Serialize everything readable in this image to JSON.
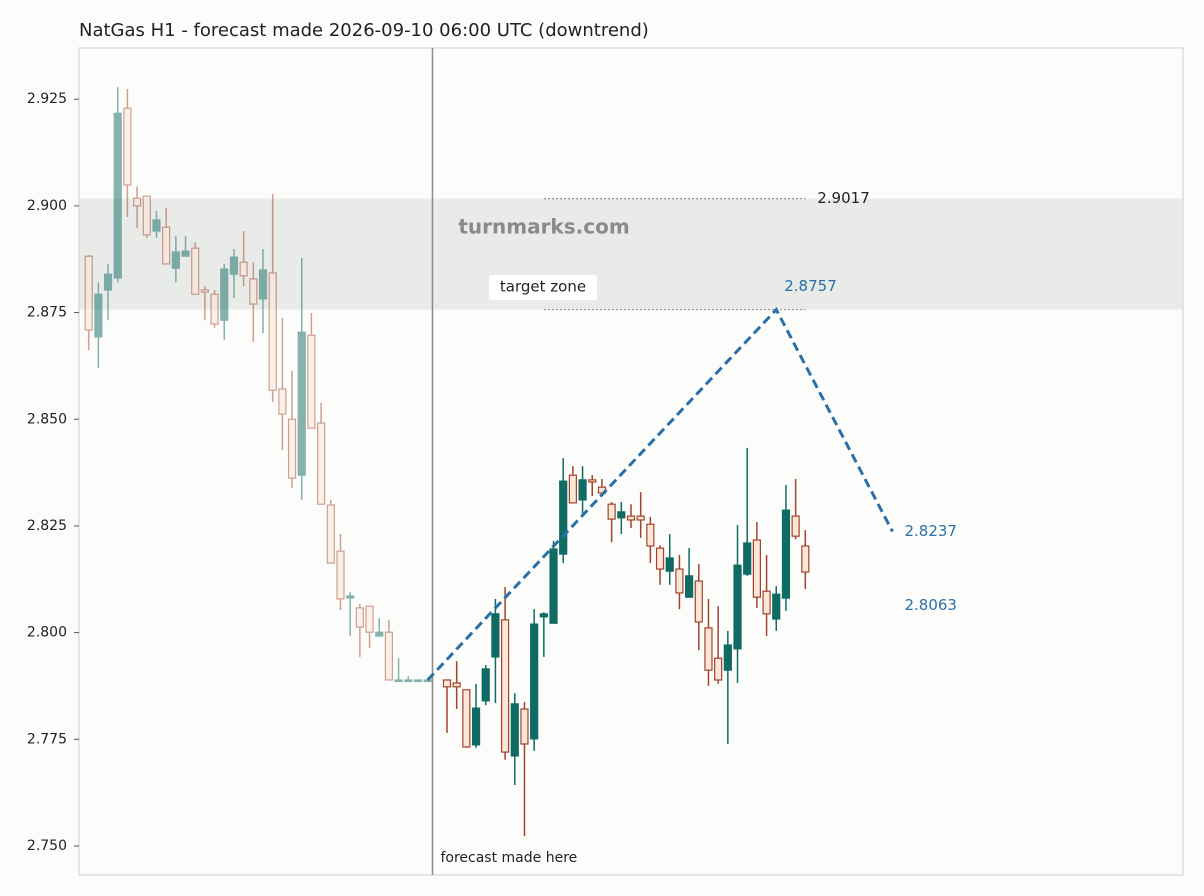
{
  "chart_data": {
    "type": "candlestick",
    "title": "NatGas H1 - forecast made 2026-09-10 06:00 UTC (downtrend)",
    "watermark": "turnmarks.com",
    "xlim": [
      -1,
      113
    ],
    "ylim": [
      2.7432,
      2.937
    ],
    "yticks": [
      {
        "value": 2.75,
        "label": "2.750"
      },
      2.775,
      {
        "value": 2.8,
        "label": "2.800"
      },
      2.825,
      {
        "value": 2.85,
        "label": "2.850"
      },
      2.875,
      {
        "value": 2.9,
        "label": "2.900"
      },
      2.925
    ],
    "up_color": "#0f6b63",
    "down_color": "#a0442a",
    "series": [
      {
        "name": "history",
        "opacity": 0.5,
        "x": [
          0,
          1,
          2,
          3,
          4,
          5,
          6,
          7,
          8,
          9,
          10,
          11,
          12,
          13,
          14,
          15,
          16,
          17,
          18,
          19,
          20,
          21,
          22,
          23,
          24,
          25,
          26,
          27,
          28,
          29,
          30,
          31,
          32,
          33,
          34,
          35
        ],
        "open": [
          2.8882,
          2.8693,
          2.8803,
          2.8831,
          2.9229,
          2.9018,
          2.9023,
          2.8941,
          2.895,
          2.8854,
          2.8882,
          2.8901,
          2.8803,
          2.8793,
          2.8732,
          2.884,
          2.8868,
          2.8829,
          2.8782,
          2.8843,
          2.8571,
          2.85,
          2.8369,
          2.8697,
          2.8491,
          2.8299,
          2.8191,
          2.8081,
          2.8058,
          2.8062,
          2.7992,
          2.8001,
          2.7889,
          2.7889,
          2.7889,
          2.7889
        ],
        "high": [
          2.8885,
          2.8821,
          2.8864,
          2.9278,
          2.9274,
          2.9046,
          2.9023,
          2.8988,
          2.8995,
          2.8929,
          2.8929,
          2.8915,
          2.8812,
          2.8803,
          2.8864,
          2.8899,
          2.8941,
          2.8868,
          2.8899,
          2.9028,
          2.8737,
          2.8613,
          2.8878,
          2.8749,
          2.8538,
          2.8311,
          2.8231,
          2.8095,
          2.8067,
          2.8062,
          2.8034,
          2.803,
          2.794,
          2.7898,
          2.7889,
          2.7889
        ],
        "low": [
          2.8662,
          2.862,
          2.8732,
          2.8821,
          2.8974,
          2.8948,
          2.8925,
          2.8925,
          2.8864,
          2.8821,
          2.8882,
          2.8793,
          2.8732,
          2.8714,
          2.8686,
          2.8784,
          2.8812,
          2.8681,
          2.8702,
          2.854,
          2.8428,
          2.8339,
          2.8311,
          2.8479,
          2.8301,
          2.8163,
          2.8053,
          2.7992,
          2.7943,
          2.7964,
          2.7992,
          2.7889,
          2.7889,
          2.7889,
          2.7889,
          2.7889
        ],
        "close": [
          2.8709,
          2.8793,
          2.884,
          2.9217,
          2.9049,
          2.9,
          2.8932,
          2.8967,
          2.8864,
          2.8892,
          2.8894,
          2.8793,
          2.8798,
          2.8723,
          2.8852,
          2.888,
          2.8836,
          2.877,
          2.885,
          2.8568,
          2.8512,
          2.8362,
          2.8704,
          2.8479,
          2.8301,
          2.8163,
          2.8079,
          2.8086,
          2.8013,
          2.8001,
          2.8001,
          2.7889,
          2.7889,
          2.7889,
          2.7889,
          2.7889
        ]
      },
      {
        "name": "actual",
        "opacity": 1,
        "x": [
          37,
          38,
          39,
          40,
          41,
          42,
          43,
          44,
          45,
          46,
          47,
          48,
          49,
          50,
          51,
          52,
          53,
          54,
          55,
          56,
          57,
          58,
          59,
          60,
          61,
          62,
          63,
          64,
          65,
          66,
          67,
          68,
          69,
          70,
          71,
          72,
          73,
          74
        ],
        "open": [
          2.7889,
          2.7882,
          2.7866,
          2.7737,
          2.784,
          2.7943,
          2.803,
          2.7711,
          2.7821,
          2.7751,
          2.8037,
          2.8022,
          2.8184,
          2.8369,
          2.8311,
          2.8358,
          2.8341,
          2.8301,
          2.8269,
          2.8273,
          2.8273,
          2.8254,
          2.8198,
          2.8144,
          2.8149,
          2.8083,
          2.8121,
          2.8011,
          2.794,
          2.7912,
          2.7962,
          2.8137,
          2.8217,
          2.8097,
          2.8032,
          2.8081,
          2.8273,
          2.8203
        ],
        "high": [
          2.7889,
          2.7933,
          2.7866,
          2.788,
          2.7924,
          2.8079,
          2.8107,
          2.7858,
          2.7837,
          2.8055,
          2.8048,
          2.8215,
          2.8409,
          2.839,
          2.839,
          2.8369,
          2.836,
          2.8306,
          2.8306,
          2.8301,
          2.8329,
          2.8271,
          2.8205,
          2.8231,
          2.8182,
          2.8198,
          2.8161,
          2.8079,
          2.8062,
          2.8004,
          2.8252,
          2.8433,
          2.8259,
          2.8182,
          2.8109,
          2.8346,
          2.836,
          2.824
        ],
        "low": [
          2.7765,
          2.7821,
          2.773,
          2.773,
          2.783,
          2.7835,
          2.7702,
          2.7643,
          2.7523,
          2.7723,
          2.7943,
          2.8022,
          2.8163,
          2.8304,
          2.8278,
          2.832,
          2.832,
          2.8212,
          2.8231,
          2.8245,
          2.8222,
          2.8163,
          2.8112,
          2.8112,
          2.8055,
          2.8083,
          2.7959,
          2.7875,
          2.788,
          2.7739,
          2.7882,
          2.8133,
          2.8058,
          2.7992,
          2.8004,
          2.8051,
          2.8219,
          2.8102
        ],
        "close": [
          2.7873,
          2.7873,
          2.7732,
          2.7823,
          2.7915,
          2.8044,
          2.772,
          2.7833,
          2.7739,
          2.802,
          2.8044,
          2.8196,
          2.8355,
          2.8304,
          2.8358,
          2.8353,
          2.8327,
          2.8266,
          2.8283,
          2.8264,
          2.8264,
          2.8203,
          2.8149,
          2.8175,
          2.8093,
          2.8133,
          2.8025,
          2.7912,
          2.7889,
          2.7971,
          2.8158,
          2.821,
          2.8083,
          2.8044,
          2.809,
          2.8287,
          2.8226,
          2.8142
        ]
      }
    ],
    "forecast": {
      "x": [
        35,
        71,
        83
      ],
      "values": [
        2.7889,
        2.8757,
        2.8237
      ],
      "color": "#2a6fa8"
    },
    "forecast_marker": {
      "x": 35.5,
      "label": "forecast made here"
    },
    "target_zone": {
      "low": 2.8757,
      "high": 2.9017,
      "label": "target zone",
      "color": "#e9ebe8"
    },
    "secondary_target": 2.8063
  }
}
